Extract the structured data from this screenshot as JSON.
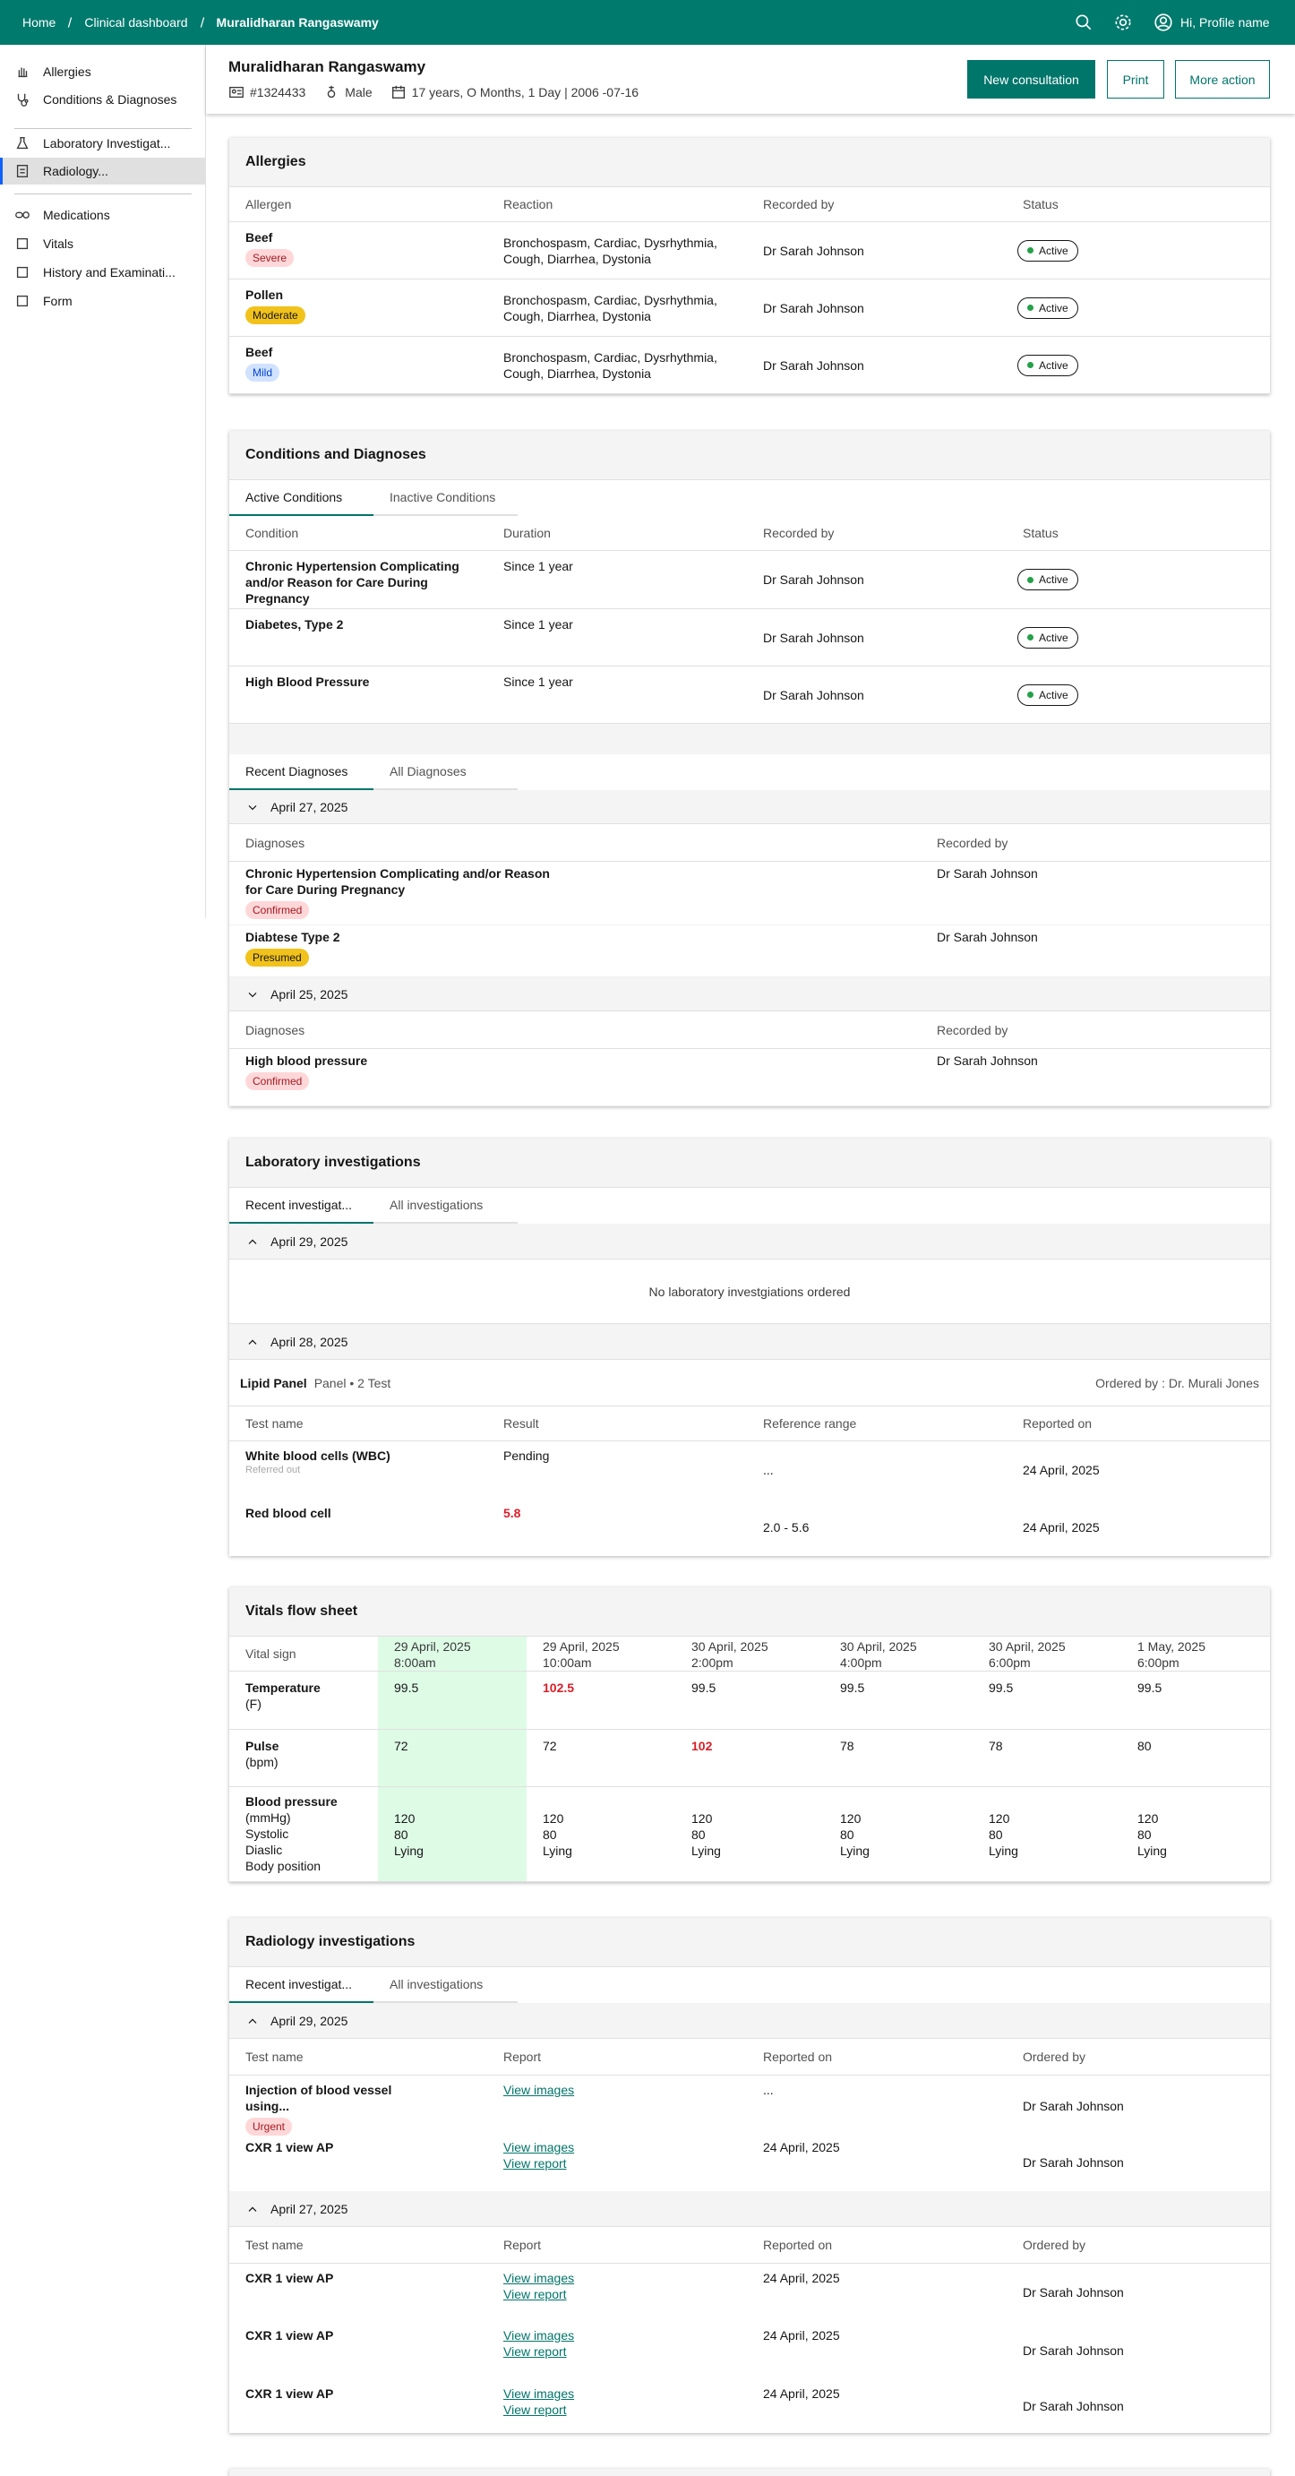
{
  "topbar": {
    "breadcrumb": [
      "Home",
      "Clinical dashboard",
      "Muralidharan Rangaswamy"
    ],
    "profile": "Hi, Profile name"
  },
  "sidebar": {
    "groups": [
      [
        "Allergies",
        "Conditions & Diagnoses"
      ],
      [
        "Laboratory Investigat...",
        "Radiology..."
      ],
      [
        "Medications",
        "Vitals",
        "History and Examinati...",
        "Form"
      ]
    ],
    "selected": {
      "group": 1,
      "item": 1
    }
  },
  "patient": {
    "name": "Muralidharan Rangaswamy",
    "id": "#1324433",
    "gender": "Male",
    "age": "17 years, O Months, 1 Day | 2006 -07-16",
    "actions": [
      "New consultation",
      "Print",
      "More action"
    ]
  },
  "allergies": {
    "title": "Allergies",
    "columns": [
      "Allergen",
      "Reaction",
      "Recorded by",
      "Status"
    ],
    "rows": [
      {
        "allergen": "Beef",
        "tag": {
          "label": "Severe",
          "bg": "#ffd7d9",
          "fg": "#a2191f"
        },
        "reaction": "Bronchospasm, Cardiac, Dysrhythmia, Cough, Diarrhea, Dystonia",
        "recorded_by": "Dr Sarah Johnson",
        "status": "Active"
      },
      {
        "allergen": "Pollen",
        "tag": {
          "label": "Moderate",
          "bg": "#f1c21b",
          "fg": "#161616"
        },
        "reaction": "Bronchospasm, Cardiac, Dysrhythmia, Cough, Diarrhea, Dystonia",
        "recorded_by": "Dr Sarah Johnson",
        "status": "Active"
      },
      {
        "allergen": "Beef",
        "tag": {
          "label": "Mild",
          "bg": "#d0e2ff",
          "fg": "#0043ce"
        },
        "reaction": "Bronchospasm, Cardiac, Dysrhythmia, Cough, Diarrhea, Dystonia",
        "recorded_by": "Dr Sarah Johnson",
        "status": "Active"
      }
    ]
  },
  "conditions": {
    "title": "Conditions and Diagnoses",
    "tabs": [
      "Active Conditions",
      "Inactive Conditions"
    ],
    "columns": [
      "Condition",
      "Duration",
      "Recorded by",
      "Status"
    ],
    "rows": [
      {
        "condition": "Chronic Hypertension Complicating and/or Reason for Care During Pregnancy",
        "duration": "Since 1 year",
        "recorded_by": "Dr Sarah Johnson",
        "status": "Active"
      },
      {
        "condition": "Diabetes, Type 2",
        "duration": "Since 1 year",
        "recorded_by": "Dr Sarah Johnson",
        "status": "Active"
      },
      {
        "condition": "High Blood Pressure",
        "duration": "Since 1 year",
        "recorded_by": "Dr Sarah Johnson",
        "status": "Active"
      }
    ],
    "diagnoses_tabs": [
      "Recent Diagnoses",
      "All Diagnoses"
    ],
    "groups": [
      {
        "date": "April 27, 2025",
        "columns": [
          "Diagnoses",
          "Recorded by"
        ],
        "rows": [
          {
            "diagnosis": "Chronic Hypertension Complicating and/or Reason for Care During Pregnancy",
            "tag": {
              "label": "Confirmed",
              "bg": "#ffd7d9",
              "fg": "#a2191f"
            },
            "recorded_by": "Dr Sarah Johnson"
          },
          {
            "diagnosis": "Diabtese Type 2",
            "tag": {
              "label": "Presumed",
              "bg": "#f1c21b",
              "fg": "#161616"
            },
            "recorded_by": "Dr Sarah Johnson"
          }
        ]
      },
      {
        "date": "April 25, 2025",
        "columns": [
          "Diagnoses",
          "Recorded by"
        ],
        "rows": [
          {
            "diagnosis": "High blood pressure",
            "tag": {
              "label": "Confirmed",
              "bg": "#ffd7d9",
              "fg": "#a2191f"
            },
            "recorded_by": "Dr Sarah Johnson"
          }
        ]
      }
    ]
  },
  "lab": {
    "title": "Laboratory investigations",
    "tabs": [
      "Recent investigat...",
      "All investigations"
    ],
    "alert_color": "#da1e28",
    "groups": [
      {
        "date": "April 29, 2025",
        "empty": "No laboratory investgiations ordered"
      },
      {
        "date": "April 28, 2025",
        "panel": "Lipid Panel",
        "panel_meta": "Panel • 2 Test",
        "ordered_by": "Ordered by : Dr. Murali Jones",
        "columns": [
          "Test name",
          "Result",
          "Reference range",
          "Reported on"
        ],
        "rows": [
          {
            "test": "White blood cells (WBC)",
            "note": "Referred out",
            "result": "Pending",
            "reference": "...",
            "reported": "24 April, 2025",
            "abnormal": false
          },
          {
            "test": "Red blood cell",
            "result": "5.8",
            "reference": "2.0 - 5.6",
            "reported": "24 April, 2025",
            "abnormal": true
          }
        ]
      }
    ]
  },
  "vitals": {
    "title": "Vitals flow sheet",
    "header": "Vital sign",
    "highlight_column": 0,
    "highlight_color": "#defbe6",
    "alert_color": "#da1e28",
    "columns": [
      {
        "date": "29 April, 2025",
        "time": "8:00am"
      },
      {
        "date": "29 April, 2025",
        "time": "10:00am"
      },
      {
        "date": "30 April, 2025",
        "time": "2:00pm"
      },
      {
        "date": "30 April, 2025",
        "time": "4:00pm"
      },
      {
        "date": "30 April, 2025",
        "time": "6:00pm"
      },
      {
        "date": "1 May, 2025",
        "time": "6:00pm"
      }
    ],
    "rows": [
      {
        "label": "Temperature",
        "unit": "(F)",
        "values": [
          99.5,
          102.5,
          99.5,
          99.5,
          99.5,
          99.5
        ],
        "alerts": [
          false,
          true,
          false,
          false,
          false,
          false
        ]
      },
      {
        "label": "Pulse",
        "unit": "(bpm)",
        "values": [
          72,
          72,
          102,
          78,
          78,
          80
        ],
        "alerts": [
          false,
          false,
          true,
          false,
          false,
          false
        ]
      },
      {
        "label": "Blood pressure",
        "unit": "(mmHg)",
        "fields": [
          "Systolic",
          "Diaslic",
          "Body position"
        ],
        "values": [
          [
            120,
            80,
            "Lying"
          ],
          [
            120,
            80,
            "Lying"
          ],
          [
            120,
            80,
            "Lying"
          ],
          [
            120,
            80,
            "Lying"
          ],
          [
            120,
            80,
            "Lying"
          ],
          [
            120,
            80,
            "Lying"
          ]
        ]
      }
    ]
  },
  "radiology": {
    "title": "Radiology investigations",
    "tabs": [
      "Recent investigat...",
      "All investigations"
    ],
    "groups": [
      {
        "date": "April 29, 2025",
        "columns": [
          "Test name",
          "Report",
          "Reported on",
          "Ordered by"
        ],
        "rows": [
          {
            "test": "Injection of blood vessel using...",
            "tag": {
              "label": "Urgent",
              "bg": "#ffd7d9",
              "fg": "#a2191f"
            },
            "links": [
              "View images"
            ],
            "reported": "...",
            "ordered_by": "Dr Sarah Johnson"
          },
          {
            "test": "CXR 1 view AP",
            "links": [
              "View images",
              "View report"
            ],
            "reported": "24 April, 2025",
            "ordered_by": "Dr Sarah Johnson"
          }
        ]
      },
      {
        "date": "April 27, 2025",
        "columns": [
          "Test name",
          "Report",
          "Reported on",
          "Ordered by"
        ],
        "rows": [
          {
            "test": "CXR 1 view AP",
            "links": [
              "View images",
              "View report"
            ],
            "reported": "24 April, 2025",
            "ordered_by": "Dr Sarah Johnson"
          },
          {
            "test": "CXR 1 view AP",
            "links": [
              "View images",
              "View report"
            ],
            "reported": "24 April, 2025",
            "ordered_by": "Dr Sarah Johnson"
          },
          {
            "test": "CXR 1 view AP",
            "links": [
              "View images",
              "View report"
            ],
            "reported": "24 April, 2025",
            "ordered_by": "Dr Sarah Johnson"
          }
        ]
      }
    ]
  }
}
